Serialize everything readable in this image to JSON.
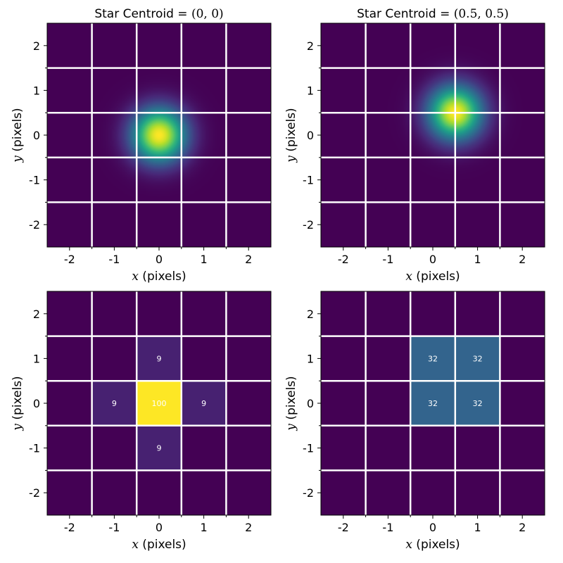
{
  "figure": {
    "colormap": "viridis",
    "gridline_color": "#ffffff",
    "background": "#ffffff"
  },
  "chart_data": [
    {
      "type": "heatmap",
      "subtype": "continuous-gaussian",
      "title_prefix": "Star Centroid = ",
      "title_math": "(0, 0)",
      "centroid": [
        0,
        0
      ],
      "sigma": 0.42,
      "xlabel_var": "x",
      "xlabel_unit": " (pixels)",
      "ylabel_var": "y",
      "ylabel_unit": " (pixels)",
      "xlim": [
        -2.5,
        2.5
      ],
      "ylim": [
        -2.5,
        2.5
      ],
      "xticks": [
        -2,
        -1,
        0,
        1,
        2
      ],
      "yticks": [
        -2,
        -1,
        0,
        1,
        2
      ],
      "xtick_labels": [
        "-2",
        "-1",
        "0",
        "1",
        "2"
      ],
      "ytick_labels": [
        "-2",
        "-1",
        "0",
        "1",
        "2"
      ],
      "pixel_grid_lines": [
        -1.5,
        -0.5,
        0.5,
        1.5
      ],
      "grid": true
    },
    {
      "type": "heatmap",
      "subtype": "continuous-gaussian",
      "title_prefix": "Star Centroid = ",
      "title_math": "(0.5, 0.5)",
      "centroid": [
        0.5,
        0.5
      ],
      "sigma": 0.42,
      "xlabel_var": "x",
      "xlabel_unit": " (pixels)",
      "ylabel_var": "y",
      "ylabel_unit": " (pixels)",
      "xlim": [
        -2.5,
        2.5
      ],
      "ylim": [
        -2.5,
        2.5
      ],
      "xticks": [
        -2,
        -1,
        0,
        1,
        2
      ],
      "yticks": [
        -2,
        -1,
        0,
        1,
        2
      ],
      "xtick_labels": [
        "-2",
        "-1",
        "0",
        "1",
        "2"
      ],
      "ytick_labels": [
        "-2",
        "-1",
        "0",
        "1",
        "2"
      ],
      "pixel_grid_lines": [
        -1.5,
        -0.5,
        0.5,
        1.5
      ],
      "grid": true
    },
    {
      "type": "heatmap",
      "subtype": "pixelated",
      "title_prefix": "",
      "title_math": "",
      "xlabel_var": "x",
      "xlabel_unit": " (pixels)",
      "ylabel_var": "y",
      "ylabel_unit": " (pixels)",
      "xlim": [
        -2.5,
        2.5
      ],
      "ylim": [
        -2.5,
        2.5
      ],
      "xticks": [
        -2,
        -1,
        0,
        1,
        2
      ],
      "yticks": [
        -2,
        -1,
        0,
        1,
        2
      ],
      "xtick_labels": [
        "-2",
        "-1",
        "0",
        "1",
        "2"
      ],
      "ytick_labels": [
        "-2",
        "-1",
        "0",
        "1",
        "2"
      ],
      "pixel_grid_lines": [
        -1.5,
        -0.5,
        0.5,
        1.5
      ],
      "grid": true,
      "value_range": [
        0,
        100
      ],
      "cells": [
        {
          "x": 0,
          "y": 1,
          "value": 9,
          "label": "9"
        },
        {
          "x": -1,
          "y": 0,
          "value": 9,
          "label": "9"
        },
        {
          "x": 0,
          "y": 0,
          "value": 100,
          "label": "100"
        },
        {
          "x": 1,
          "y": 0,
          "value": 9,
          "label": "9"
        },
        {
          "x": 0,
          "y": -1,
          "value": 9,
          "label": "9"
        }
      ]
    },
    {
      "type": "heatmap",
      "subtype": "pixelated",
      "title_prefix": "",
      "title_math": "",
      "xlabel_var": "x",
      "xlabel_unit": " (pixels)",
      "ylabel_var": "y",
      "ylabel_unit": " (pixels)",
      "xlim": [
        -2.5,
        2.5
      ],
      "ylim": [
        -2.5,
        2.5
      ],
      "xticks": [
        -2,
        -1,
        0,
        1,
        2
      ],
      "yticks": [
        -2,
        -1,
        0,
        1,
        2
      ],
      "xtick_labels": [
        "-2",
        "-1",
        "0",
        "1",
        "2"
      ],
      "ytick_labels": [
        "-2",
        "-1",
        "0",
        "1",
        "2"
      ],
      "pixel_grid_lines": [
        -1.5,
        -0.5,
        0.5,
        1.5
      ],
      "grid": true,
      "value_range": [
        0,
        100
      ],
      "cells": [
        {
          "x": 0,
          "y": 1,
          "value": 32,
          "label": "32"
        },
        {
          "x": 1,
          "y": 1,
          "value": 32,
          "label": "32"
        },
        {
          "x": 0,
          "y": 0,
          "value": 32,
          "label": "32"
        },
        {
          "x": 1,
          "y": 0,
          "value": 32,
          "label": "32"
        }
      ]
    }
  ]
}
